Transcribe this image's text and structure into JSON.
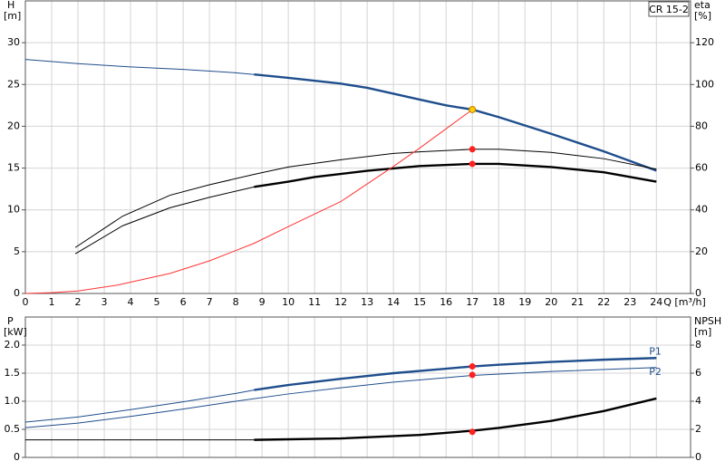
{
  "chart_data": [
    {
      "type": "line",
      "legend_text": "CR 15-2",
      "y_label": "H",
      "y_unit": "[m]",
      "y2_label": "eta",
      "y2_unit": "[%]",
      "x_label": "Q [m³/h]",
      "xlim": [
        0,
        25.3
      ],
      "xticks": [
        0,
        1,
        2,
        3,
        4,
        5,
        6,
        7,
        8,
        9,
        10,
        11,
        12,
        13,
        14,
        15,
        16,
        17,
        18,
        19,
        20,
        21,
        22,
        23,
        24
      ],
      "ylim": [
        0,
        35
      ],
      "yticks": [
        0,
        5,
        10,
        15,
        20,
        25,
        30
      ],
      "y2lim": [
        0,
        140
      ],
      "y2ticks": [
        0,
        20,
        40,
        60,
        80,
        100,
        120
      ],
      "grid": true,
      "bold_from_x": 8.7,
      "series": [
        {
          "color": "#1f4e8c",
          "bold": true,
          "x": [
            0,
            2,
            4,
            6,
            8,
            8.7,
            10,
            12,
            13,
            14,
            15,
            16,
            17,
            18,
            20,
            22,
            24
          ],
          "values": [
            28,
            27.5,
            27.1,
            26.8,
            26.4,
            26.2,
            25.8,
            25.1,
            24.6,
            23.9,
            23.2,
            22.5,
            22,
            21.1,
            19.1,
            17,
            14.7
          ]
        },
        {
          "color": "#000000",
          "bold": false,
          "axis": "y2",
          "x": [
            1.9,
            3.7,
            5.5,
            7,
            8.7,
            10,
            12,
            14,
            15,
            17,
            18,
            20,
            22,
            24
          ],
          "values": [
            22,
            37,
            47,
            52,
            57,
            60.5,
            64,
            67,
            67.8,
            69,
            69,
            67.5,
            64.5,
            59.5
          ]
        },
        {
          "color": "#000000",
          "bold": true,
          "axis": "y2",
          "x": [
            1.9,
            3.7,
            5.5,
            7,
            8.7,
            10,
            11,
            13,
            15,
            17,
            18,
            20,
            22,
            24
          ],
          "values": [
            19,
            32.4,
            41,
            46,
            51,
            53.5,
            55.7,
            58.7,
            61,
            62,
            62,
            60.5,
            58,
            53.5
          ]
        },
        {
          "color": "#ff3333",
          "bold": false,
          "x": [
            0,
            1,
            2,
            3.5,
            5.5,
            7,
            8.7,
            10,
            12,
            14,
            15,
            16,
            17
          ],
          "values": [
            0,
            0.1,
            0.3,
            1,
            2.4,
            3.9,
            6,
            8,
            11,
            15.2,
            17.4,
            19.7,
            22
          ]
        }
      ],
      "points": [
        {
          "x": 17,
          "y": 69,
          "axis": "y2",
          "color": "#ff2020"
        },
        {
          "x": 17,
          "y": 62,
          "axis": "y2",
          "color": "#ff2020"
        },
        {
          "x": 17,
          "y": 22,
          "color": "#ffcc00"
        }
      ]
    },
    {
      "type": "line",
      "y_label": "P",
      "y_unit": "[kW]",
      "y2_label": "NPSH",
      "y2_unit": "[m]",
      "xlim": [
        0,
        25.3
      ],
      "xticks": [
        0,
        1,
        2,
        3,
        4,
        5,
        6,
        7,
        8,
        9,
        10,
        11,
        12,
        13,
        14,
        15,
        16,
        17,
        18,
        19,
        20,
        21,
        22,
        23,
        24
      ],
      "ylim": [
        0,
        2.5
      ],
      "yticks": [
        0,
        {
          "value": 0.5,
          "label": "0.5"
        },
        {
          "value": 1,
          "label": "1.0"
        },
        {
          "value": 1.5,
          "label": "1.5"
        },
        {
          "value": 2,
          "label": "2.0"
        }
      ],
      "y2lim": [
        0,
        10
      ],
      "y2ticks": [
        0,
        2,
        4,
        6,
        8
      ],
      "grid": true,
      "bold_from_x": 8.7,
      "series": [
        {
          "name": "P1",
          "color": "#1f4e8c",
          "bold": true,
          "x": [
            0,
            2,
            4,
            6,
            8,
            8.7,
            10,
            12,
            14,
            16,
            17,
            18,
            20,
            22,
            24
          ],
          "values": [
            0.63,
            0.72,
            0.85,
            0.99,
            1.14,
            1.2,
            1.29,
            1.4,
            1.5,
            1.58,
            1.62,
            1.65,
            1.7,
            1.74,
            1.77
          ]
        },
        {
          "name": "P2",
          "color": "#1f4e8c",
          "bold": false,
          "x": [
            0,
            2,
            4,
            6,
            8,
            10,
            12,
            14,
            16,
            17,
            20,
            24
          ],
          "values": [
            0.53,
            0.61,
            0.73,
            0.86,
            1.0,
            1.13,
            1.24,
            1.34,
            1.42,
            1.46,
            1.53,
            1.6
          ]
        },
        {
          "color": "#000000",
          "bold": true,
          "axis": "y2",
          "x": [
            0,
            8.7,
            12,
            15,
            17,
            18,
            20,
            22,
            24
          ],
          "values": [
            1.25,
            1.25,
            1.35,
            1.6,
            1.9,
            2.1,
            2.6,
            3.3,
            4.2
          ]
        }
      ],
      "points": [
        {
          "x": 17,
          "y": 1.62,
          "color": "#ff2020"
        },
        {
          "x": 17,
          "y": 1.47,
          "color": "#ff2020"
        },
        {
          "x": 17,
          "y": 1.82,
          "axis": "y2",
          "color": "#ff2020"
        }
      ]
    }
  ]
}
